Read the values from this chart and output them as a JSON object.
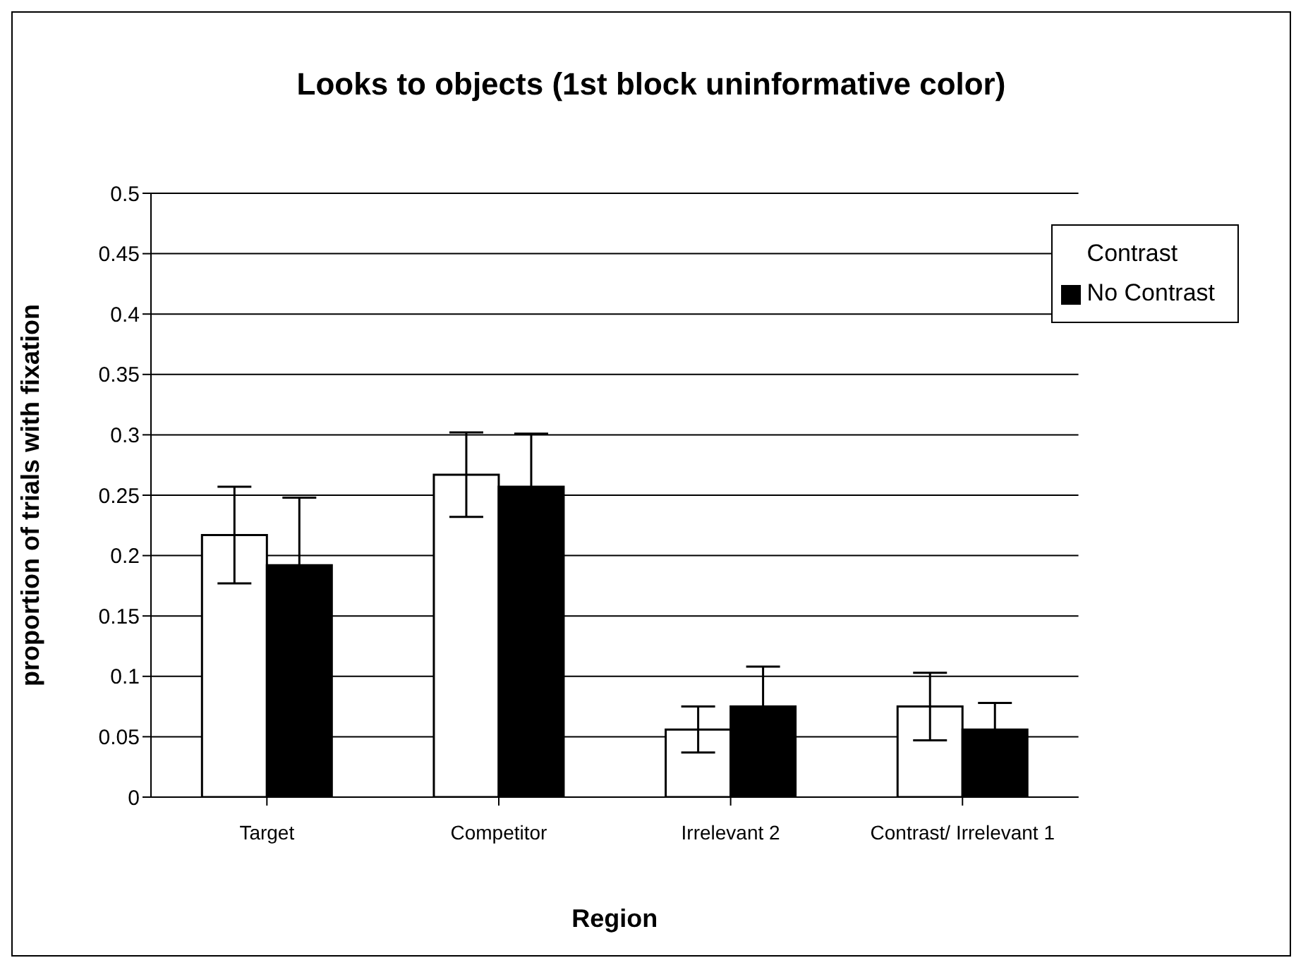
{
  "chart_data": {
    "type": "bar",
    "title": "Looks to objects (1st block uninformative color)",
    "xlabel": "Region",
    "ylabel": "proportion of trials with fixation",
    "categories": [
      "Target",
      "Competitor",
      "Irrelevant 2",
      "Contrast/ Irrelevant 1"
    ],
    "series": [
      {
        "name": "Contrast",
        "color": "#ffffff",
        "values": [
          0.217,
          0.267,
          0.056,
          0.075
        ],
        "errors": [
          0.04,
          0.035,
          0.019,
          0.028
        ]
      },
      {
        "name": "No Contrast",
        "color": "#000000",
        "values": [
          0.192,
          0.257,
          0.075,
          0.056
        ],
        "errors": [
          0.056,
          0.044,
          0.033,
          0.022
        ]
      }
    ],
    "ylim": [
      0,
      0.5
    ],
    "yticks": [
      0,
      0.05,
      0.1,
      0.15,
      0.2,
      0.25,
      0.3,
      0.35,
      0.4,
      0.45,
      0.5
    ],
    "grid": "y",
    "legend": "top right"
  }
}
